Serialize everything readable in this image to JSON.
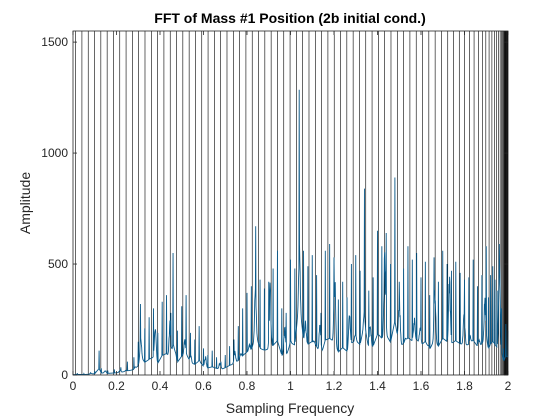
{
  "chart_data": {
    "type": "line",
    "title": "FFT of Mass #1 Position (2b initial cond.)",
    "xlabel": "Sampling Frequency",
    "ylabel": "Amplitude",
    "xlim": [
      0,
      2
    ],
    "ylim": [
      0,
      1550
    ],
    "xticks": [
      "0",
      "0.2",
      "0.4",
      "0.6",
      "0.8",
      "1",
      "1.2",
      "1.4",
      "1.6",
      "1.8",
      "2"
    ],
    "xtick_values": [
      0,
      0.2,
      0.4,
      0.6,
      0.8,
      1.0,
      1.2,
      1.4,
      1.6,
      1.8,
      2.0
    ],
    "yticks": [
      "0",
      "500",
      "1000",
      "1500"
    ],
    "ytick_values": [
      0,
      500,
      1000,
      1500
    ],
    "grid": false,
    "legend": "none",
    "colors": {
      "series": "#0b5a8a",
      "vlines": "#000000",
      "axes": "#262626"
    },
    "vertical_lines": {
      "description_free": true,
      "x": [
        0.012,
        0.041,
        0.07,
        0.099,
        0.128,
        0.157,
        0.186,
        0.215,
        0.244,
        0.273,
        0.302,
        0.331,
        0.36,
        0.389,
        0.418,
        0.447,
        0.476,
        0.505,
        0.534,
        0.563,
        0.592,
        0.621,
        0.65,
        0.679,
        0.708,
        0.737,
        0.766,
        0.795,
        0.824,
        0.853,
        0.882,
        0.911,
        0.94,
        0.969,
        0.998,
        1.027,
        1.056,
        1.085,
        1.114,
        1.143,
        1.172,
        1.201,
        1.23,
        1.259,
        1.288,
        1.317,
        1.346,
        1.375,
        1.404,
        1.433,
        1.462,
        1.491,
        1.52,
        1.549,
        1.578,
        1.607,
        1.636,
        1.665,
        1.694,
        1.723,
        1.75,
        1.776,
        1.8,
        1.823,
        1.844,
        1.864,
        1.882,
        1.898,
        1.913,
        1.926,
        1.938,
        1.948,
        1.957,
        1.964,
        1.97,
        1.975,
        1.979,
        1.982,
        1.985,
        1.987,
        1.989,
        1.991,
        1.993,
        1.995,
        1.997,
        1.999
      ]
    },
    "series": [
      {
        "peaks": [
          [
            0.0,
            5
          ],
          [
            0.02,
            8
          ],
          [
            0.05,
            6
          ],
          [
            0.08,
            10
          ],
          [
            0.1,
            18
          ],
          [
            0.12,
            110
          ],
          [
            0.13,
            30
          ],
          [
            0.16,
            20
          ],
          [
            0.19,
            25
          ],
          [
            0.22,
            35
          ],
          [
            0.25,
            60
          ],
          [
            0.28,
            80
          ],
          [
            0.3,
            150
          ],
          [
            0.31,
            320
          ],
          [
            0.33,
            210
          ],
          [
            0.35,
            260
          ],
          [
            0.37,
            300
          ],
          [
            0.39,
            190
          ],
          [
            0.41,
            330
          ],
          [
            0.43,
            360
          ],
          [
            0.45,
            280
          ],
          [
            0.46,
            550
          ],
          [
            0.48,
            200
          ],
          [
            0.5,
            310
          ],
          [
            0.52,
            360
          ],
          [
            0.54,
            190
          ],
          [
            0.56,
            160
          ],
          [
            0.58,
            220
          ],
          [
            0.6,
            120
          ],
          [
            0.62,
            90
          ],
          [
            0.64,
            110
          ],
          [
            0.66,
            80
          ],
          [
            0.68,
            60
          ],
          [
            0.7,
            90
          ],
          [
            0.72,
            130
          ],
          [
            0.74,
            160
          ],
          [
            0.76,
            220
          ],
          [
            0.78,
            300
          ],
          [
            0.8,
            370
          ],
          [
            0.82,
            400
          ],
          [
            0.84,
            670
          ],
          [
            0.86,
            430
          ],
          [
            0.88,
            390
          ],
          [
            0.9,
            420
          ],
          [
            0.92,
            480
          ],
          [
            0.94,
            560
          ],
          [
            0.96,
            300
          ],
          [
            0.98,
            280
          ],
          [
            1.0,
            520
          ],
          [
            1.02,
            480
          ],
          [
            1.04,
            1285
          ],
          [
            1.06,
            560
          ],
          [
            1.08,
            490
          ],
          [
            1.1,
            540
          ],
          [
            1.12,
            450
          ],
          [
            1.14,
            280
          ],
          [
            1.16,
            560
          ],
          [
            1.18,
            590
          ],
          [
            1.2,
            530
          ],
          [
            1.22,
            340
          ],
          [
            1.24,
            420
          ],
          [
            1.26,
            350
          ],
          [
            1.28,
            500
          ],
          [
            1.3,
            540
          ],
          [
            1.32,
            470
          ],
          [
            1.34,
            840
          ],
          [
            1.36,
            380
          ],
          [
            1.38,
            440
          ],
          [
            1.4,
            650
          ],
          [
            1.42,
            580
          ],
          [
            1.44,
            640
          ],
          [
            1.46,
            500
          ],
          [
            1.48,
            890
          ],
          [
            1.5,
            420
          ],
          [
            1.52,
            480
          ],
          [
            1.54,
            580
          ],
          [
            1.56,
            520
          ],
          [
            1.58,
            550
          ],
          [
            1.6,
            440
          ],
          [
            1.62,
            510
          ],
          [
            1.64,
            360
          ],
          [
            1.66,
            530
          ],
          [
            1.68,
            420
          ],
          [
            1.7,
            560
          ],
          [
            1.72,
            500
          ],
          [
            1.74,
            470
          ],
          [
            1.76,
            510
          ],
          [
            1.78,
            460
          ],
          [
            1.8,
            430
          ],
          [
            1.82,
            440
          ],
          [
            1.84,
            520
          ],
          [
            1.86,
            400
          ],
          [
            1.88,
            450
          ],
          [
            1.9,
            580
          ],
          [
            1.91,
            350
          ],
          [
            1.92,
            450
          ],
          [
            1.93,
            490
          ],
          [
            1.94,
            430
          ],
          [
            1.95,
            380
          ],
          [
            1.96,
            590
          ],
          [
            1.97,
            300
          ],
          [
            1.98,
            120
          ],
          [
            1.99,
            230
          ],
          [
            2.0,
            200
          ]
        ]
      }
    ]
  }
}
